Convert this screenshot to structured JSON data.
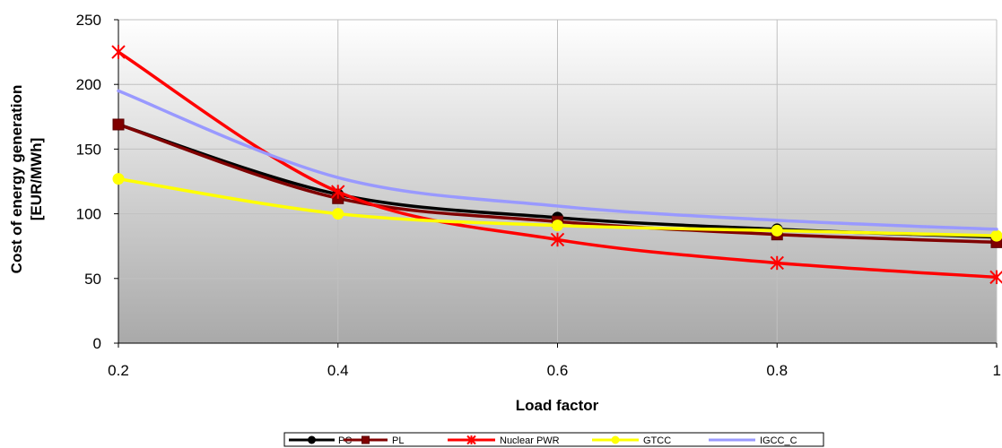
{
  "chart_data": {
    "type": "line",
    "xlabel": "Load factor",
    "ylabel": [
      "Cost of energy generation",
      "[EUR/MWh]"
    ],
    "x": [
      0.2,
      0.4,
      0.6,
      0.8,
      1
    ],
    "x_tick_labels": [
      "0.2",
      "0.4",
      "0.6",
      "0.8",
      "1"
    ],
    "y_tick_labels": [
      "0",
      "50",
      "100",
      "150",
      "200",
      "250"
    ],
    "xlim": [
      0.2,
      1
    ],
    "ylim": [
      0,
      250
    ],
    "grid": true,
    "legend_position": "bottom",
    "series": [
      {
        "name": "PC",
        "values": [
          169,
          115,
          97,
          88,
          82
        ],
        "color": "#000000",
        "marker": "circle"
      },
      {
        "name": "PL",
        "values": [
          169,
          112,
          94,
          84,
          78
        ],
        "color": "#800000",
        "marker": "square"
      },
      {
        "name": "Nuclear PWR",
        "values": [
          225,
          117,
          80,
          62,
          51
        ],
        "color": "#ff0000",
        "marker": "star"
      },
      {
        "name": "GTCC",
        "values": [
          127,
          100,
          91,
          87,
          83
        ],
        "color": "#ffff00",
        "marker": "circle"
      },
      {
        "name": "IGCC_C",
        "values": [
          195,
          128,
          106,
          95,
          88
        ],
        "color": "#9999ff",
        "marker": "none"
      }
    ]
  }
}
